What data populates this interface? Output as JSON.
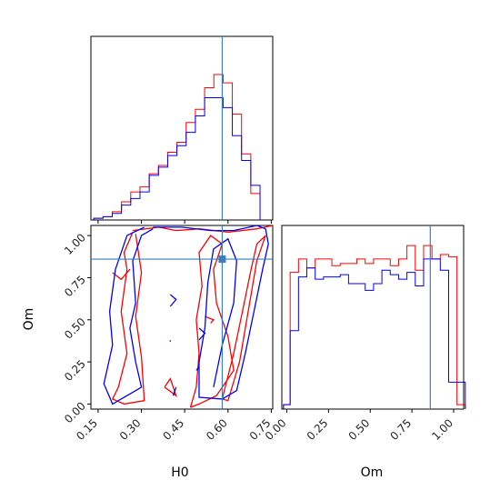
{
  "chart_data": {
    "type": "corner",
    "parameters": [
      "H0",
      "Om"
    ],
    "truths": {
      "H0": 0.58,
      "Om": 0.86
    },
    "colors": {
      "red": "#ff0000",
      "blue": "#0000ff",
      "truth": "#3a7fc0",
      "axis": "#000000"
    },
    "H0_axis": {
      "label": "H0",
      "range": [
        0.125,
        0.755
      ],
      "ticks": [
        0.15,
        0.3,
        0.45,
        0.6,
        0.75
      ],
      "tick_labels": [
        "0.15",
        "0.30",
        "0.45",
        "0.60",
        "0.75"
      ]
    },
    "Om_axis": {
      "label": "Om",
      "range": [
        -0.03,
        1.06
      ],
      "ticks": [
        0.0,
        0.25,
        0.5,
        0.75,
        1.0
      ],
      "tick_labels": [
        "0.00",
        "0.25",
        "0.50",
        "0.75",
        "1.00"
      ]
    },
    "H0_histogram": {
      "bin_edges": [
        0.135,
        0.167,
        0.199,
        0.231,
        0.263,
        0.295,
        0.327,
        0.359,
        0.391,
        0.423,
        0.455,
        0.487,
        0.519,
        0.551,
        0.583,
        0.615,
        0.647,
        0.679,
        0.711
      ],
      "series": [
        {
          "color": "red",
          "counts": [
            0.01,
            0.02,
            0.05,
            0.11,
            0.17,
            0.2,
            0.28,
            0.33,
            0.41,
            0.47,
            0.59,
            0.67,
            0.8,
            0.88,
            0.83,
            0.64,
            0.4,
            0.16
          ]
        },
        {
          "color": "blue",
          "counts": [
            0.01,
            0.02,
            0.04,
            0.09,
            0.13,
            0.17,
            0.27,
            0.32,
            0.39,
            0.45,
            0.53,
            0.63,
            0.74,
            0.74,
            0.68,
            0.51,
            0.36,
            0.21
          ]
        }
      ]
    },
    "Om_histogram": {
      "bin_edges": [
        -0.02,
        0.02,
        0.07,
        0.12,
        0.17,
        0.22,
        0.27,
        0.32,
        0.37,
        0.42,
        0.47,
        0.52,
        0.57,
        0.62,
        0.67,
        0.72,
        0.77,
        0.82,
        0.87,
        0.92,
        0.97,
        1.02,
        1.07
      ],
      "series": [
        {
          "color": "red",
          "counts": [
            0.02,
            0.61,
            0.67,
            0.63,
            0.67,
            0.67,
            0.64,
            0.65,
            0.65,
            0.67,
            0.65,
            0.67,
            0.67,
            0.64,
            0.67,
            0.73,
            0.62,
            0.73,
            0.67,
            0.69,
            0.68,
            0.02
          ]
        },
        {
          "color": "blue",
          "counts": [
            0.02,
            0.35,
            0.59,
            0.63,
            0.58,
            0.59,
            0.59,
            0.6,
            0.56,
            0.56,
            0.53,
            0.56,
            0.62,
            0.6,
            0.58,
            0.61,
            0.55,
            0.67,
            0.67,
            0.62,
            0.12,
            0.12
          ]
        }
      ]
    },
    "contours_2d": {
      "series": [
        {
          "color": "red",
          "levels": [
            [
              [
                0.27,
                1.03
              ],
              [
                0.36,
                1.05
              ],
              [
                0.42,
                1.03
              ],
              [
                0.5,
                1.04
              ],
              [
                0.6,
                1.02
              ],
              [
                0.7,
                1.04
              ],
              [
                0.755,
                1.06
              ]
            ],
            [
              [
                0.27,
                1.02
              ],
              [
                0.24,
                0.9
              ],
              [
                0.25,
                0.8
              ],
              [
                0.23,
                0.55
              ],
              [
                0.25,
                0.3
              ],
              [
                0.22,
                0.1
              ],
              [
                0.2,
                0.03
              ],
              [
                0.24,
                0.0
              ],
              [
                0.31,
                0.02
              ],
              [
                0.3,
                0.28
              ],
              [
                0.28,
                0.52
              ],
              [
                0.3,
                0.78
              ],
              [
                0.28,
                1.01
              ]
            ],
            [
              [
                0.2,
                0.78
              ],
              [
                0.23,
                0.74
              ],
              [
                0.26,
                0.8
              ]
            ],
            [
              [
                0.47,
                -0.02
              ],
              [
                0.49,
                0.1
              ],
              [
                0.5,
                0.3
              ],
              [
                0.49,
                0.5
              ],
              [
                0.51,
                0.7
              ],
              [
                0.5,
                0.9
              ],
              [
                0.54,
                1.0
              ],
              [
                0.58,
                0.95
              ],
              [
                0.55,
                0.8
              ],
              [
                0.56,
                0.6
              ],
              [
                0.6,
                0.4
              ],
              [
                0.62,
                0.2
              ],
              [
                0.56,
                0.05
              ],
              [
                0.5,
                0.0
              ],
              [
                0.47,
                -0.02
              ]
            ],
            [
              [
                0.58,
                0.03
              ],
              [
                0.62,
                0.3
              ],
              [
                0.65,
                0.55
              ],
              [
                0.68,
                0.8
              ],
              [
                0.7,
                0.95
              ],
              [
                0.73,
                1.0
              ],
              [
                0.7,
                0.85
              ],
              [
                0.67,
                0.55
              ],
              [
                0.64,
                0.25
              ],
              [
                0.6,
                0.02
              ],
              [
                0.58,
                0.03
              ]
            ],
            [
              [
                0.4,
                0.37
              ],
              [
                0.4,
                0.38
              ]
            ],
            [
              [
                0.52,
                0.52
              ],
              [
                0.55,
                0.5
              ],
              [
                0.54,
                0.48
              ]
            ],
            [
              [
                0.38,
                0.1
              ],
              [
                0.42,
                0.05
              ],
              [
                0.4,
                0.15
              ],
              [
                0.38,
                0.1
              ]
            ]
          ]
        },
        {
          "color": "blue",
          "levels": [
            [
              [
                0.34,
                1.05
              ],
              [
                0.44,
                1.05
              ],
              [
                0.54,
                1.03
              ],
              [
                0.62,
                1.03
              ],
              [
                0.7,
                1.06
              ],
              [
                0.73,
                1.04
              ],
              [
                0.74,
                0.95
              ],
              [
                0.72,
                0.8
              ],
              [
                0.69,
                0.55
              ],
              [
                0.66,
                0.3
              ],
              [
                0.63,
                0.08
              ],
              [
                0.58,
                0.03
              ],
              [
                0.5,
                0.04
              ],
              [
                0.5,
                0.25
              ],
              [
                0.52,
                0.45
              ],
              [
                0.53,
                0.72
              ],
              [
                0.55,
                0.92
              ],
              [
                0.6,
                0.98
              ],
              [
                0.63,
                0.85
              ],
              [
                0.62,
                0.6
              ],
              [
                0.58,
                0.35
              ],
              [
                0.55,
                0.1
              ]
            ],
            [
              [
                0.34,
                1.04
              ],
              [
                0.3,
                1.0
              ],
              [
                0.27,
                0.85
              ],
              [
                0.28,
                0.6
              ],
              [
                0.26,
                0.45
              ],
              [
                0.28,
                0.25
              ],
              [
                0.3,
                0.1
              ],
              [
                0.25,
                0.05
              ],
              [
                0.2,
                0.0
              ],
              [
                0.17,
                0.12
              ],
              [
                0.2,
                0.35
              ],
              [
                0.19,
                0.55
              ],
              [
                0.21,
                0.8
              ],
              [
                0.25,
                1.0
              ],
              [
                0.31,
                1.05
              ]
            ],
            [
              [
                0.4,
                0.65
              ],
              [
                0.42,
                0.62
              ],
              [
                0.4,
                0.58
              ]
            ],
            [
              [
                0.41,
                0.05
              ],
              [
                0.42,
                0.1
              ]
            ],
            [
              [
                0.49,
                0.2
              ],
              [
                0.5,
                0.22
              ]
            ],
            [
              [
                0.5,
                0.38
              ],
              [
                0.52,
                0.42
              ],
              [
                0.5,
                0.45
              ]
            ]
          ]
        }
      ]
    }
  }
}
